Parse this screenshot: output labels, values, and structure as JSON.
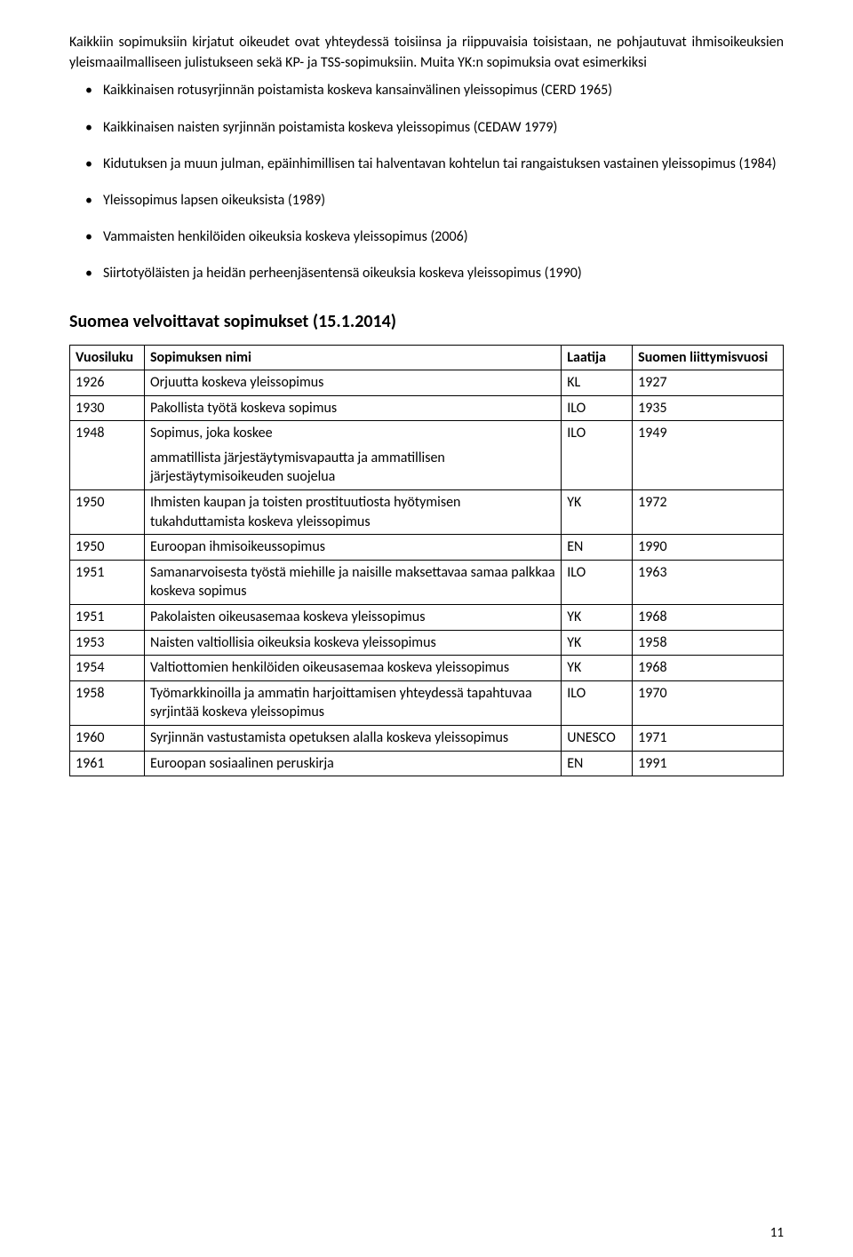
{
  "intro_para": "Kaikkiin sopimuksiin kirjatut oikeudet ovat yhteydessä toisiinsa ja riippuvaisia toisistaan, ne pohjautuvat ihmisoikeuksien yleismaailmalliseen julistukseen sekä KP- ja TSS-sopimuksiin. Muita YK:n sopimuksia ovat esimerkiksi",
  "bullets": [
    "Kaikkinaisen rotusyrjinnän poistamista koskeva kansainvälinen yleissopimus (CERD 1965)",
    "Kaikkinaisen naisten syrjinnän poistamista koskeva yleissopimus (CEDAW 1979)",
    "Kidutuksen ja muun julman, epäinhimillisen tai halventavan kohtelun tai rangaistuksen vastainen yleissopimus (1984)",
    "Yleissopimus lapsen oikeuksista (1989)",
    "Vammaisten henkilöiden oikeuksia koskeva yleissopimus (2006)",
    "Siirtotyöläisten ja heidän perheenjäsentensä oikeuksia koskeva yleissopimus (1990)"
  ],
  "section_title": "Suomea velvoittavat sopimukset (15.1.2014)",
  "table": {
    "headers": {
      "year": "Vuosiluku",
      "name": "Sopimuksen nimi",
      "author": "Laatija",
      "joined": "Suomen liittymisvuosi"
    },
    "rows": [
      {
        "year": "1926",
        "name": "Orjuutta koskeva yleissopimus",
        "author": "KL",
        "joined": "1927"
      },
      {
        "year": "1930",
        "name": "Pakollista työtä koskeva sopimus",
        "author": "ILO",
        "joined": "1935"
      },
      {
        "year": "1948",
        "name": "Sopimus, joka koskee\nammatillista järjestäytymisvapautta ja ammatillisen järjestäytymisoikeuden suojelua",
        "author": "ILO",
        "joined": "1949"
      },
      {
        "year": "1950",
        "name": "Ihmisten kaupan ja toisten prostituutiosta hyötymisen tukahduttamista koskeva yleissopimus",
        "author": "YK",
        "joined": "1972"
      },
      {
        "year": "1950",
        "name": "Euroopan ihmisoikeussopimus",
        "author": "EN",
        "joined": "1990"
      },
      {
        "year": "1951",
        "name": "Samanarvoisesta työstä miehille ja naisille maksettavaa samaa palkkaa koskeva sopimus",
        "author": "ILO",
        "joined": "1963"
      },
      {
        "year": "1951",
        "name": "Pakolaisten oikeusasemaa koskeva yleissopimus",
        "author": "YK",
        "joined": "1968"
      },
      {
        "year": "1953",
        "name": "Naisten valtiollisia oikeuksia koskeva yleissopimus",
        "author": "YK",
        "joined": "1958"
      },
      {
        "year": "1954",
        "name": "Valtiottomien henkilöiden oikeusasemaa koskeva yleissopimus",
        "author": "YK",
        "joined": "1968"
      },
      {
        "year": "1958",
        "name": "Työmarkkinoilla ja ammatin harjoittamisen yhteydessä tapahtuvaa syrjintää koskeva yleissopimus",
        "author": "ILO",
        "joined": "1970"
      },
      {
        "year": "1960",
        "name": "Syrjinnän vastustamista opetuksen alalla koskeva yleissopimus",
        "author": "UNESCO",
        "joined": "1971"
      },
      {
        "year": "1961",
        "name": "Euroopan sosiaalinen peruskirja",
        "author": "EN",
        "joined": "1991"
      }
    ]
  },
  "page_number": "11"
}
